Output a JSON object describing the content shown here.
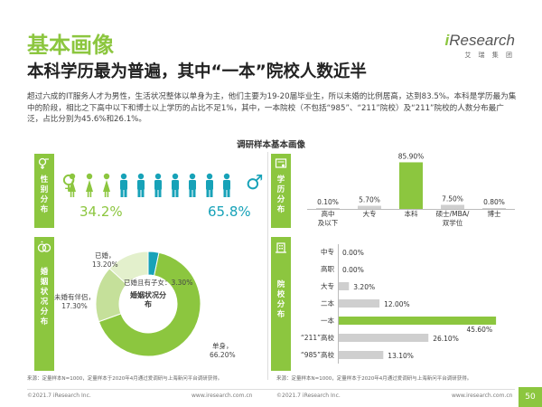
{
  "page": {
    "title": "基本画像",
    "headline": "本科学历最为普遍，其中“一本”院校人数近半",
    "summary": "超过六成的IT服务人才为男性，生活状况整体以单身为主，他们主要为19-20届毕业生，所以未婚的比例居高，达到83.5%。本科是学历最为集中的阶段，相比之下高中以下和博士以上学历的占比不足1%，其中，一本院校（不包括“985”、“211”院校）及“211”院校的人数分布最广泛，占比分别为45.6%和26.1%。",
    "center_title": "调研样本基本画像",
    "page_number": "50"
  },
  "logo": {
    "word_i": "i",
    "word_rest": "Research",
    "cn": "艾 瑞 集 团"
  },
  "panels": {
    "gender": {
      "label": "性别分布"
    },
    "education": {
      "label": "学历分布"
    },
    "marriage": {
      "label": "婚姻状况分布"
    },
    "school": {
      "label": "院校分布"
    }
  },
  "sources": {
    "left": "来源：定量样本N=1000，定量样本于2020年4月通过爱调研与上海新问平台调研获得。",
    "right": "来源：定量样本N=1000，定量样本于2020年4月通过爱调研与上海新问平台调研获得。"
  },
  "footer": {
    "left_copyright": "©2021.7 iResearch Inc.",
    "left_url": "www.iresearch.com.cn",
    "right_copyright": "©2021.7 iResearch Inc.",
    "right_url": "www.iresearch.com.cn"
  },
  "colors": {
    "green": "#8cc63f",
    "teal": "#17a2b8",
    "light_green": "#c5e09a",
    "pale_green": "#e3f0cc",
    "gray": "#cfcfcf"
  },
  "chart_data": [
    {
      "type": "pie",
      "panel": "gender",
      "categories": [
        "女",
        "男"
      ],
      "values": [
        34.2,
        65.8
      ],
      "value_labels": [
        "34.2%",
        "65.8%"
      ]
    },
    {
      "type": "pie",
      "panel": "marriage",
      "title": "婚姻状况分布",
      "categories": [
        "单身",
        "未婚有伴侣",
        "已婚",
        "已婚且有子女"
      ],
      "values": [
        66.2,
        17.3,
        13.2,
        3.3
      ],
      "value_labels": [
        "66.20%",
        "17.30%",
        "13.20%",
        "3.30%"
      ]
    },
    {
      "type": "bar",
      "panel": "education",
      "categories": [
        "高中及以下",
        "大专",
        "本科",
        "硕士/MBA/双学位",
        "博士"
      ],
      "category_lines": [
        [
          "高中",
          "及以下"
        ],
        [
          "大专"
        ],
        [
          "本科"
        ],
        [
          "硕士/MBA/",
          "双学位"
        ],
        [
          "博士"
        ]
      ],
      "values": [
        0.1,
        5.7,
        85.9,
        7.5,
        0.8
      ],
      "value_labels": [
        "0.10%",
        "5.70%",
        "85.90%",
        "7.50%",
        "0.80%"
      ],
      "ylim": [
        0,
        100
      ]
    },
    {
      "type": "bar",
      "orientation": "horizontal",
      "panel": "school",
      "categories": [
        "中专",
        "高职",
        "大专",
        "二本",
        "一本",
        "“211”高校",
        "“985”高校"
      ],
      "values": [
        0.0,
        0.0,
        3.2,
        12.0,
        45.6,
        26.1,
        13.1
      ],
      "value_labels": [
        "0.00%",
        "0.00%",
        "3.20%",
        "12.00%",
        "45.60%",
        "26.10%",
        "13.10%"
      ],
      "xlim": [
        0,
        50
      ]
    }
  ]
}
